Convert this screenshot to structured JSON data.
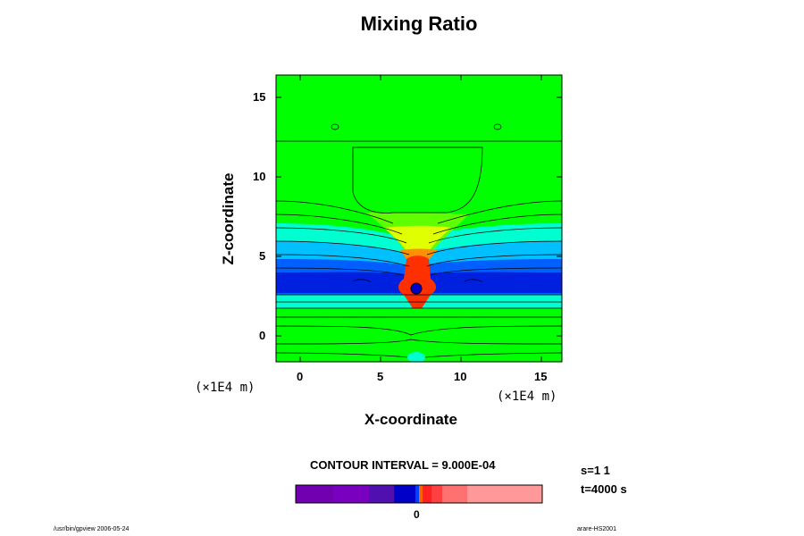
{
  "chart_data": {
    "type": "heatmap",
    "title": "Mixing Ratio",
    "xlabel": "X-coordinate",
    "ylabel": "Z-coordinate",
    "x_unit_label": "(×1E4 m)",
    "x_ticks": [
      "0",
      "5",
      "10",
      "15"
    ],
    "y_ticks": [
      "15",
      "10",
      "5",
      "0"
    ],
    "xlim": [
      -1.6,
      16.2
    ],
    "ylim": [
      -1.6,
      16.4
    ],
    "contour_interval_label": "CONTOUR INTERVAL = 9.000E-04",
    "colorbar_tick": "0",
    "colorbar_colors": [
      "#7000b0",
      "#7a00c0",
      "#5010b0",
      "#0000c8",
      "#0040ff",
      "#ff6000",
      "#ff2020",
      "#ff4040",
      "#ff7070",
      "#ff9999"
    ],
    "field_colors": {
      "background": "#00ff00",
      "cyan": "#00ffd0",
      "lightblue": "#00c0ff",
      "blue": "#0060ff",
      "darkblue": "#0020e0",
      "yellow": "#e0ff00",
      "orange": "#ff9000",
      "red": "#ff3000",
      "lime": "#60ff00"
    }
  },
  "annotations": {
    "s_value": "s=1 1",
    "t_value": "t=4000 s"
  },
  "footer": {
    "left": "/usr/bin/gpview 2006-05-24",
    "right": "arare-HS2001"
  }
}
